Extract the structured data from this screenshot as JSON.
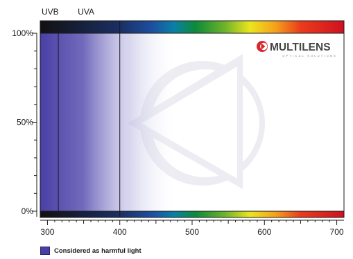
{
  "logo": {
    "name": "MULTILENS",
    "tagline": "OPTICAL SOLUTIONS"
  },
  "colors": {
    "harmful": "#4a3fa6",
    "harmful_dark": "#2a2470",
    "frame": "#1a1a1a"
  },
  "chart_data": {
    "type": "area",
    "title": "",
    "xlabel": "",
    "ylabel": "",
    "xlim": [
      290,
      710
    ],
    "ylim": [
      0,
      100
    ],
    "x_ticks": [
      300,
      400,
      500,
      600,
      700
    ],
    "y_ticks": [
      {
        "value": 0,
        "label": "0%"
      },
      {
        "value": 50,
        "label": "50%"
      },
      {
        "value": 100,
        "label": "100%"
      }
    ],
    "bands": [
      {
        "label": "UVB",
        "x_start": 290,
        "x_end": 315
      },
      {
        "label": "UVA",
        "x_start": 315,
        "x_end": 400
      }
    ],
    "boundaries": [
      315,
      400
    ],
    "harmful_region": {
      "x_start": 290,
      "fade_start": 410,
      "x_end": 480,
      "y_min": 0,
      "y_max": 100
    },
    "spectrum": {
      "x_start": 290,
      "x_end": 710,
      "stops": [
        {
          "x": 290,
          "color": "#111111"
        },
        {
          "x": 400,
          "color": "#1b2f63"
        },
        {
          "x": 445,
          "color": "#1d4fa0"
        },
        {
          "x": 475,
          "color": "#0a80a6"
        },
        {
          "x": 505,
          "color": "#0e8a3a"
        },
        {
          "x": 545,
          "color": "#6cb32b"
        },
        {
          "x": 580,
          "color": "#ece51d"
        },
        {
          "x": 615,
          "color": "#f4a21c"
        },
        {
          "x": 650,
          "color": "#ea3c1c"
        },
        {
          "x": 710,
          "color": "#cf1020"
        }
      ]
    },
    "legend": {
      "label": "Considered as harmful light",
      "placement": "bottom-left"
    }
  }
}
